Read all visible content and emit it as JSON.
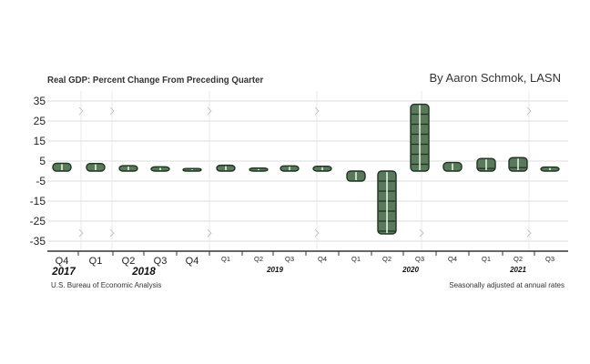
{
  "chart_data": {
    "type": "bar",
    "title": "Real GDP: Percent Change From Preceding Quarter",
    "byline": "By Aaron Schmok, LASN",
    "source": "U.S. Bureau of Economic Analysis",
    "note": "Seasonally adjusted at annual rates",
    "categories": [
      "Q4",
      "Q1",
      "Q2",
      "Q3",
      "Q4",
      "Q1",
      "Q2",
      "Q3",
      "Q4",
      "Q1",
      "Q2",
      "Q3",
      "Q4",
      "Q1",
      "Q2",
      "Q3"
    ],
    "years": [
      "2017",
      "2018",
      "2019",
      "2020",
      "2021"
    ],
    "series": [
      {
        "name": "Real GDP % change",
        "values": [
          3.9,
          3.8,
          2.7,
          2.1,
          1.3,
          2.9,
          1.5,
          2.6,
          2.4,
          -5.0,
          -31.4,
          33.4,
          4.3,
          6.3,
          6.7,
          2.0
        ]
      }
    ],
    "yticks": [
      35,
      25,
      15,
      5,
      -5,
      -15,
      -25,
      -35
    ],
    "ylim": [
      -40,
      40
    ],
    "xlabel": "",
    "ylabel": ""
  },
  "colors": {
    "bill": "#587a5a",
    "bill_dark": "#1f3322",
    "grid": "#dcdcdc",
    "axis": "#333333"
  }
}
